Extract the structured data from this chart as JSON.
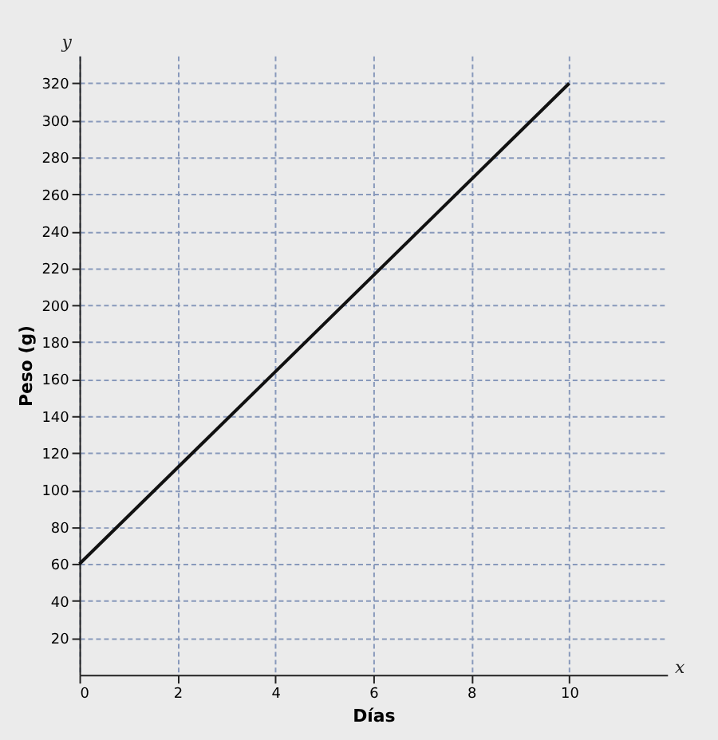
{
  "chart_data": {
    "type": "line",
    "x": [
      0,
      10
    ],
    "series": [
      {
        "color": "#111111",
        "values": [
          60,
          320
        ]
      }
    ],
    "xlabel": "Días",
    "ylabel": "Peso (g)",
    "annotations": [
      "y",
      "x"
    ],
    "xlim": [
      0,
      12
    ],
    "xticks": [
      0,
      2,
      4,
      6,
      8,
      10
    ],
    "ylim": [
      0,
      335
    ],
    "yticks": [
      20,
      40,
      60,
      80,
      100,
      120,
      140,
      160,
      180,
      200,
      220,
      240,
      260,
      280,
      300,
      320
    ],
    "grid": true,
    "marker": "none",
    "line_style": "solid"
  }
}
